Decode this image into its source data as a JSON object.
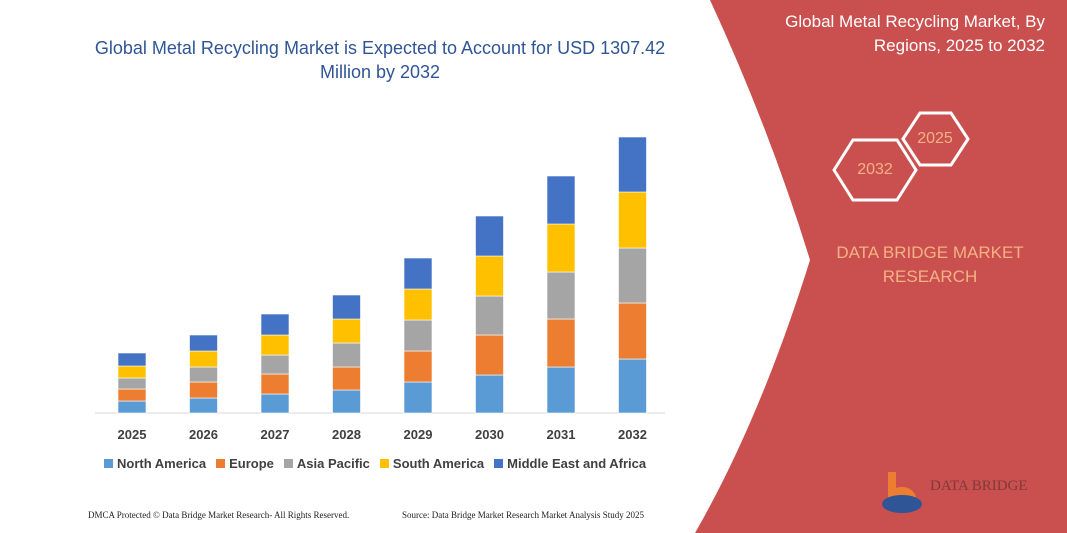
{
  "title": "Global Metal Recycling Market is Expected to Account for USD 1307.42 Million by 2032",
  "side_panel": {
    "title": "Global Metal Recycling Market, By Regions, 2025 to 2032",
    "hex_left": "2032",
    "hex_right": "2025",
    "brand": "DATA BRIDGE MARKET RESEARCH",
    "logo_text": "DATA BRIDGE",
    "color": "#c9504f"
  },
  "footer": {
    "left": "DMCA Protected © Data Bridge Market Research- All Rights Reserved.",
    "right": "Source: Data Bridge Market Research  Market Analysis Study 2025"
  },
  "chart_data": {
    "type": "bar",
    "stacked": true,
    "grid": false,
    "legend": "bottom",
    "categories": [
      "2025",
      "2026",
      "2027",
      "2028",
      "2029",
      "2030",
      "2031",
      "2032"
    ],
    "series": [
      {
        "name": "North America",
        "color": "#5b9bd5",
        "values": [
          12,
          15,
          19,
          23,
          31,
          38,
          46,
          54
        ]
      },
      {
        "name": "Europe",
        "color": "#ed7d31",
        "values": [
          12,
          16,
          20,
          23,
          31,
          40,
          48,
          56
        ]
      },
      {
        "name": "Asia Pacific",
        "color": "#a5a5a5",
        "values": [
          11,
          15,
          19,
          24,
          31,
          39,
          47,
          55
        ]
      },
      {
        "name": "South America",
        "color": "#ffc000",
        "values": [
          12,
          16,
          20,
          24,
          31,
          40,
          48,
          56
        ]
      },
      {
        "name": "Middle East and Africa",
        "color": "#4472c4",
        "values": [
          13,
          16,
          21,
          24,
          31,
          40,
          48,
          55
        ]
      }
    ]
  }
}
